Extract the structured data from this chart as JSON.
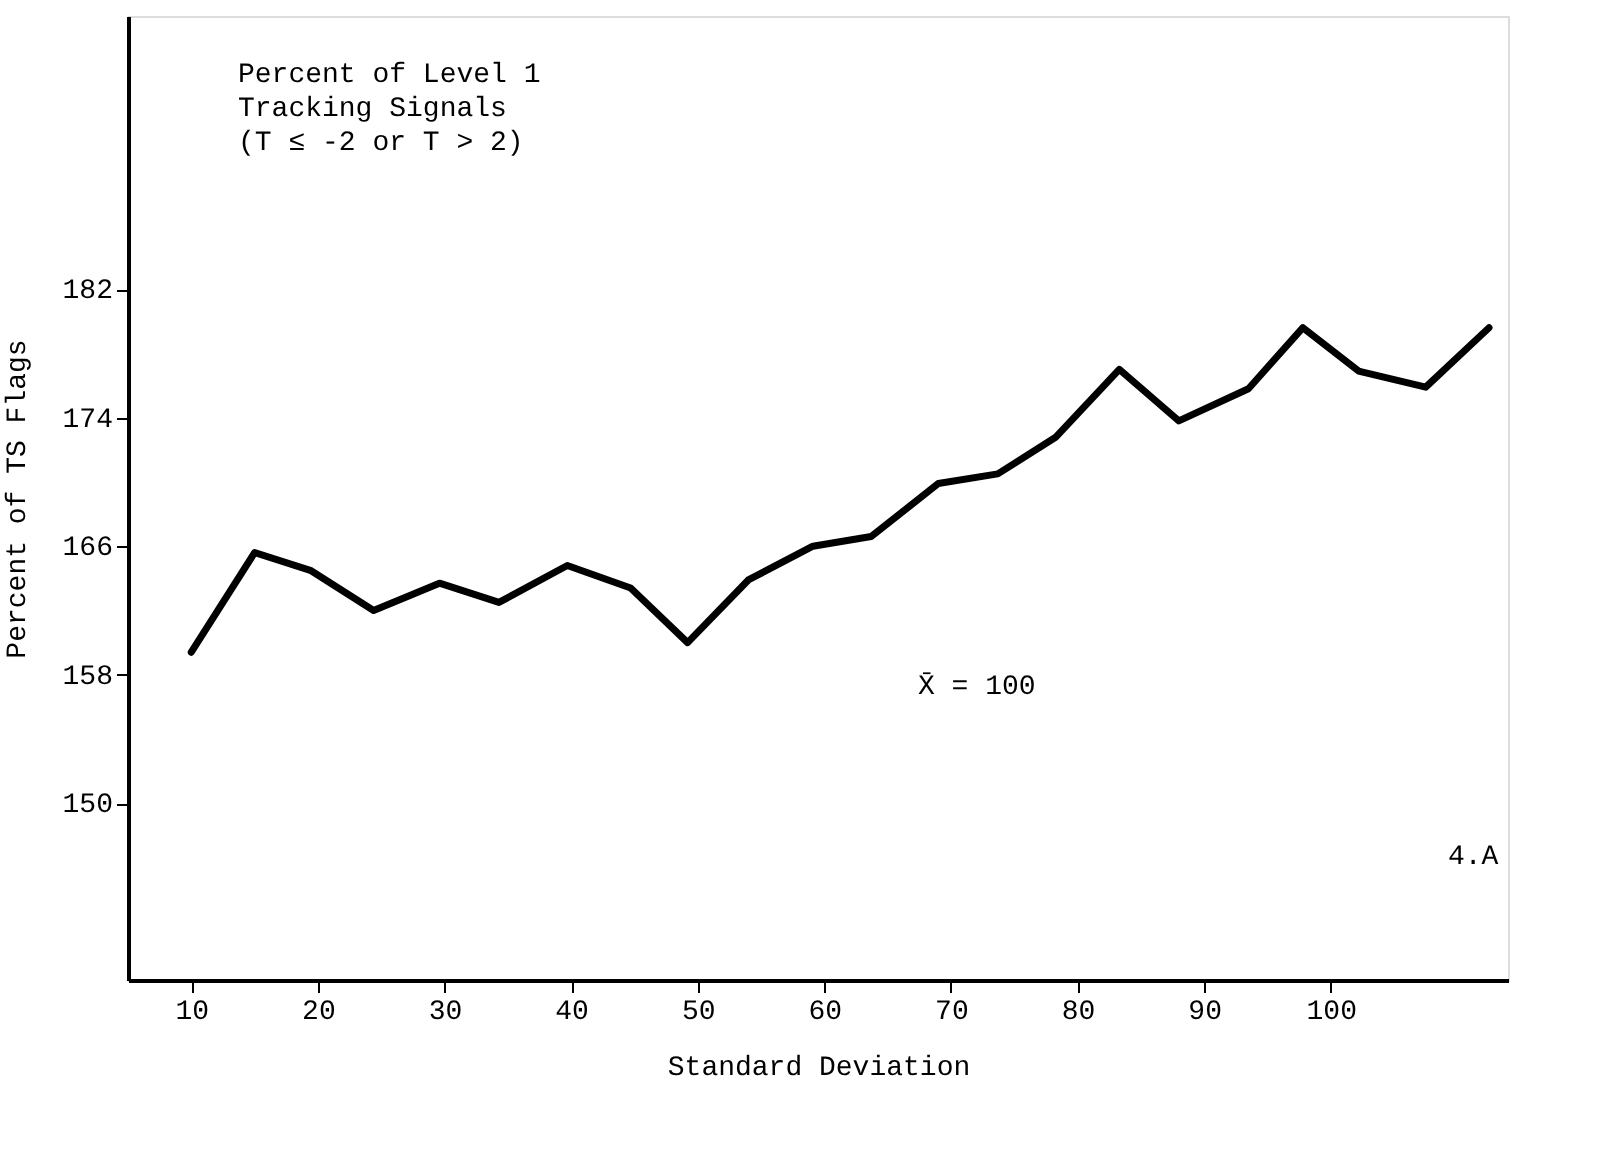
{
  "chart_data": {
    "type": "line",
    "title": "Percent of Level 1\nTracking Signals\n  (T ≤ -2 or T > 2)",
    "xlabel": "Standard Deviation",
    "ylabel": "Percent of TS Flags",
    "x": [
      10,
      15.0,
      19.4,
      24.4,
      29.6,
      34.3,
      39.7,
      44.7,
      49.2,
      54.0,
      59.1,
      63.7,
      69.0,
      73.7,
      78.3,
      83.3,
      88.0,
      93.5,
      97.8,
      102.2,
      107.5,
      112.5
    ],
    "series": [
      {
        "color": "#000000",
        "values": [
          159.4,
          165.6,
          164.5,
          162.0,
          163.7,
          162.5,
          164.8,
          163.4,
          160.0,
          163.9,
          166.0,
          166.6,
          169.9,
          170.5,
          172.8,
          177.0,
          173.8,
          175.8,
          179.6,
          176.9,
          175.9,
          179.6
        ]
      }
    ],
    "xlim": [
      5,
      114
    ],
    "xticks": [
      10,
      20,
      30,
      40,
      50,
      60,
      70,
      80,
      90,
      100
    ],
    "ylim": [
      139,
      199
    ],
    "yticks": [
      150,
      158,
      166,
      174,
      182
    ],
    "annotations": [
      "X̄ = 100",
      "4.A"
    ],
    "grid": false,
    "marker": "none",
    "line_style": "solid"
  }
}
